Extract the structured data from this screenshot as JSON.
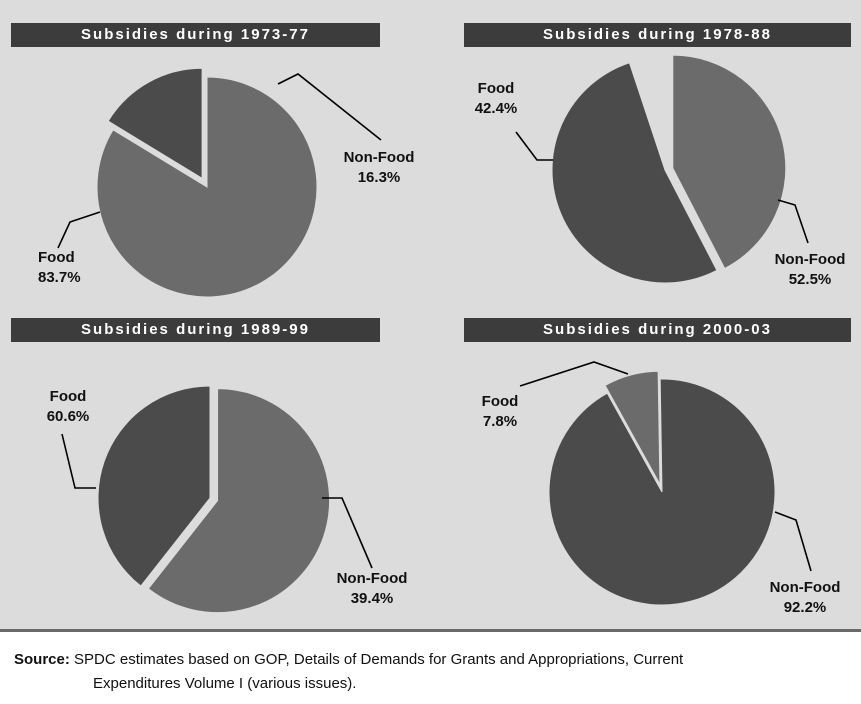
{
  "colors": {
    "background": "#dcdcdc",
    "title_bar": "#3c3c3c",
    "food": "#6b6b6b",
    "non_food": "#4b4b4b",
    "leader": "#000000"
  },
  "chart_data": [
    {
      "type": "pie",
      "title": "Subsidies during 1973-77",
      "slices": [
        {
          "label": "Food",
          "percent_label": "83.7%",
          "value": 83.7,
          "color": "#6b6b6b",
          "exploded": false
        },
        {
          "label": "Non-Food",
          "percent_label": "16.3%",
          "value": 16.3,
          "color": "#4b4b4b",
          "exploded": true
        }
      ]
    },
    {
      "type": "pie",
      "title": "Subsidies during 1978-88",
      "slices": [
        {
          "label": "Food",
          "percent_label": "42.4%",
          "value": 42.4,
          "color": "#6b6b6b",
          "exploded": true
        },
        {
          "label": "Non-Food",
          "percent_label": "52.5%",
          "value": 52.5,
          "color": "#4b4b4b",
          "exploded": false
        }
      ]
    },
    {
      "type": "pie",
      "title": "Subsidies during 1989-99",
      "slices": [
        {
          "label": "Food",
          "percent_label": "60.6%",
          "value": 60.6,
          "color": "#6b6b6b",
          "exploded": true
        },
        {
          "label": "Non-Food",
          "percent_label": "39.4%",
          "value": 39.4,
          "color": "#4b4b4b",
          "exploded": false
        }
      ]
    },
    {
      "type": "pie",
      "title": "Subsidies during 2000-03",
      "slices": [
        {
          "label": "Food",
          "percent_label": "7.8%",
          "value": 7.8,
          "color": "#6b6b6b",
          "exploded": true
        },
        {
          "label": "Non-Food",
          "percent_label": "92.2%",
          "value": 92.2,
          "color": "#4b4b4b",
          "exploded": false
        }
      ]
    }
  ],
  "source": {
    "label": "Source:",
    "line1": "SPDC estimates based on GOP, Details of Demands for Grants and Appropriations, Current",
    "line2": "Expenditures Volume I (various issues)."
  }
}
